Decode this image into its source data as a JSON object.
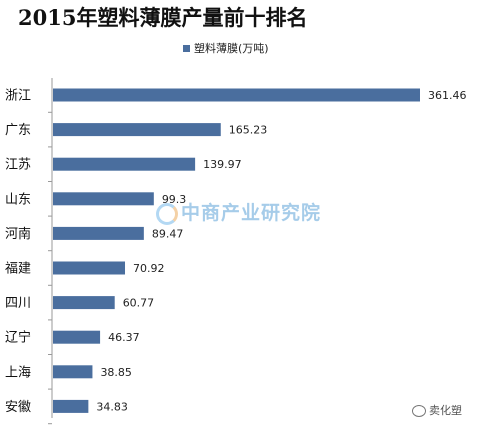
{
  "chart_data": {
    "type": "bar",
    "orientation": "horizontal",
    "title": "2015年塑料薄膜产量前十排名",
    "legend": {
      "position": "top",
      "entries": [
        "塑料薄膜(万吨)"
      ]
    },
    "categories": [
      "浙江",
      "广东",
      "江苏",
      "山东",
      "河南",
      "福建",
      "四川",
      "辽宁",
      "上海",
      "安徽"
    ],
    "series": [
      {
        "name": "塑料薄膜(万吨)",
        "values": [
          361.46,
          165.23,
          139.97,
          99.3,
          89.47,
          70.92,
          60.77,
          46.37,
          38.85,
          34.83
        ],
        "labels": [
          "361.46",
          "165.23",
          "139.97",
          "99.3",
          "89.47",
          "70.92",
          "60.77",
          "46.37",
          "38.85",
          "34.83"
        ]
      }
    ],
    "xlim": [
      0,
      361.46
    ],
    "grid": false,
    "bar_color": "#4a6e9e",
    "background": "#ffffff"
  },
  "watermark": {
    "text": "中商产业研究院"
  },
  "credit": {
    "text": "卖化塑"
  }
}
